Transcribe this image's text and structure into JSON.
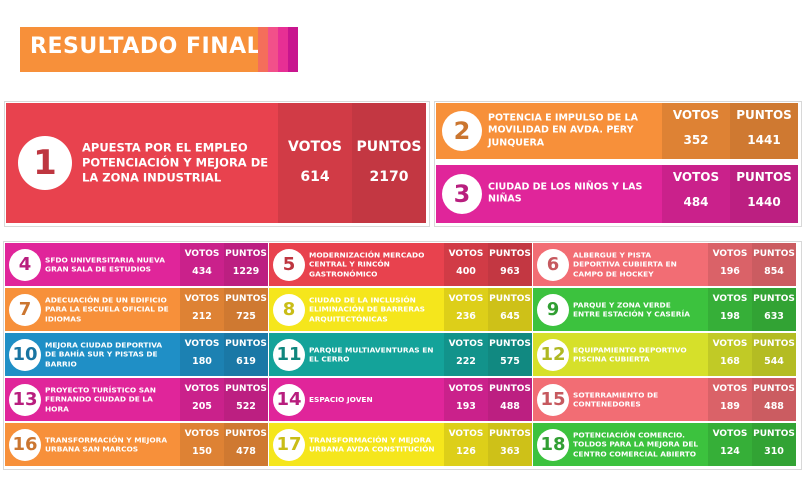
{
  "title": "RESULTADO FINAL",
  "votos_label": "VOTOS",
  "puntos_label": "PUNTOS",
  "projects": [
    {
      "rank": "1",
      "name": "APUESTA POR EL EMPLEO POTENCIACIÓN Y MEJORA DE LA ZONA INDUSTRIAL",
      "votos": "614",
      "puntos": "2170",
      "color": "#e8424e"
    },
    {
      "rank": "2",
      "name": "POTENCIA E IMPULSO DE LA MOVILIDAD EN AVDA. PERY JUNQUERA",
      "votos": "352",
      "puntos": "1441",
      "color": "#f7903a"
    },
    {
      "rank": "3",
      "name": "CIUDAD DE LOS NIÑOS Y LAS NIÑAS",
      "votos": "484",
      "puntos": "1440",
      "color": "#e0259a"
    },
    {
      "rank": "4",
      "name": "SFDO UNIVERSITARIA NUEVA GRAN SALA DE ESTUDIOS",
      "votos": "434",
      "puntos": "1229",
      "color": "#e0259a"
    },
    {
      "rank": "5",
      "name": "MODERNIZACIÓN MERCADO CENTRAL Y RINCÓN GASTRONÓMICO",
      "votos": "400",
      "puntos": "963",
      "color": "#e8424e"
    },
    {
      "rank": "6",
      "name": "ALBERGUE Y PISTA DEPORTIVA CUBIERTA EN CAMPO DE HOCKEY",
      "votos": "196",
      "puntos": "854",
      "color": "#f26d74"
    },
    {
      "rank": "7",
      "name": "ADECUACIÓN DE UN EDIFICIO PARA LA ESCUELA OFICIAL DE IDIOMAS",
      "votos": "212",
      "puntos": "725",
      "color": "#f7903a"
    },
    {
      "rank": "8",
      "name": "CIUDAD DE LA INCLUSIÓN ELIMINACIÓN DE BARRERAS ARQUITECTÓNICAS",
      "votos": "236",
      "puntos": "645",
      "color": "#f5e61c"
    },
    {
      "rank": "9",
      "name": "PARQUE Y ZONA VERDE ENTRE ESTACIÓN Y CASERÍA",
      "votos": "198",
      "puntos": "633",
      "color": "#3cc23e"
    },
    {
      "rank": "10",
      "name": "MEJORA CIUDAD DEPORTIVA DE BAHÍA SUR Y PISTAS DE BARRIO",
      "votos": "180",
      "puntos": "619",
      "color": "#1f8fc6"
    },
    {
      "rank": "11",
      "name": "PARQUE MULTIAVENTURAS EN EL CERRO",
      "votos": "222",
      "puntos": "575",
      "color": "#14a39a"
    },
    {
      "rank": "12",
      "name": "EQUIPAMIENTO DEPORTIVO PISCINA CUBIERTA",
      "votos": "168",
      "puntos": "544",
      "color": "#d6e02a"
    },
    {
      "rank": "13",
      "name": "PROYECTO TURÍSTICO SAN FERNANDO CIUDAD DE LA HORA",
      "votos": "205",
      "puntos": "522",
      "color": "#e0259a"
    },
    {
      "rank": "14",
      "name": "ESPACIO JOVEN",
      "votos": "193",
      "puntos": "488",
      "color": "#e0259a"
    },
    {
      "rank": "15",
      "name": "SOTERRAMIENTO DE CONTENEDORES",
      "votos": "189",
      "puntos": "488",
      "color": "#f26d74"
    },
    {
      "rank": "16",
      "name": "TRANSFORMACIÓN Y MEJORA URBANA SAN MARCOS",
      "votos": "150",
      "puntos": "478",
      "color": "#f7903a"
    },
    {
      "rank": "17",
      "name": "TRANSFORMACIÓN Y MEJORA URBANA AVDA CONSTITUCIÓN",
      "votos": "126",
      "puntos": "363",
      "color": "#f5e61c"
    },
    {
      "rank": "18",
      "name": "POTENCIACIÓN COMERCIO. TOLDOS PARA LA MEJORA DEL CENTRO COMERCIAL ABIERTO",
      "votos": "124",
      "puntos": "310",
      "color": "#3cc23e"
    }
  ]
}
